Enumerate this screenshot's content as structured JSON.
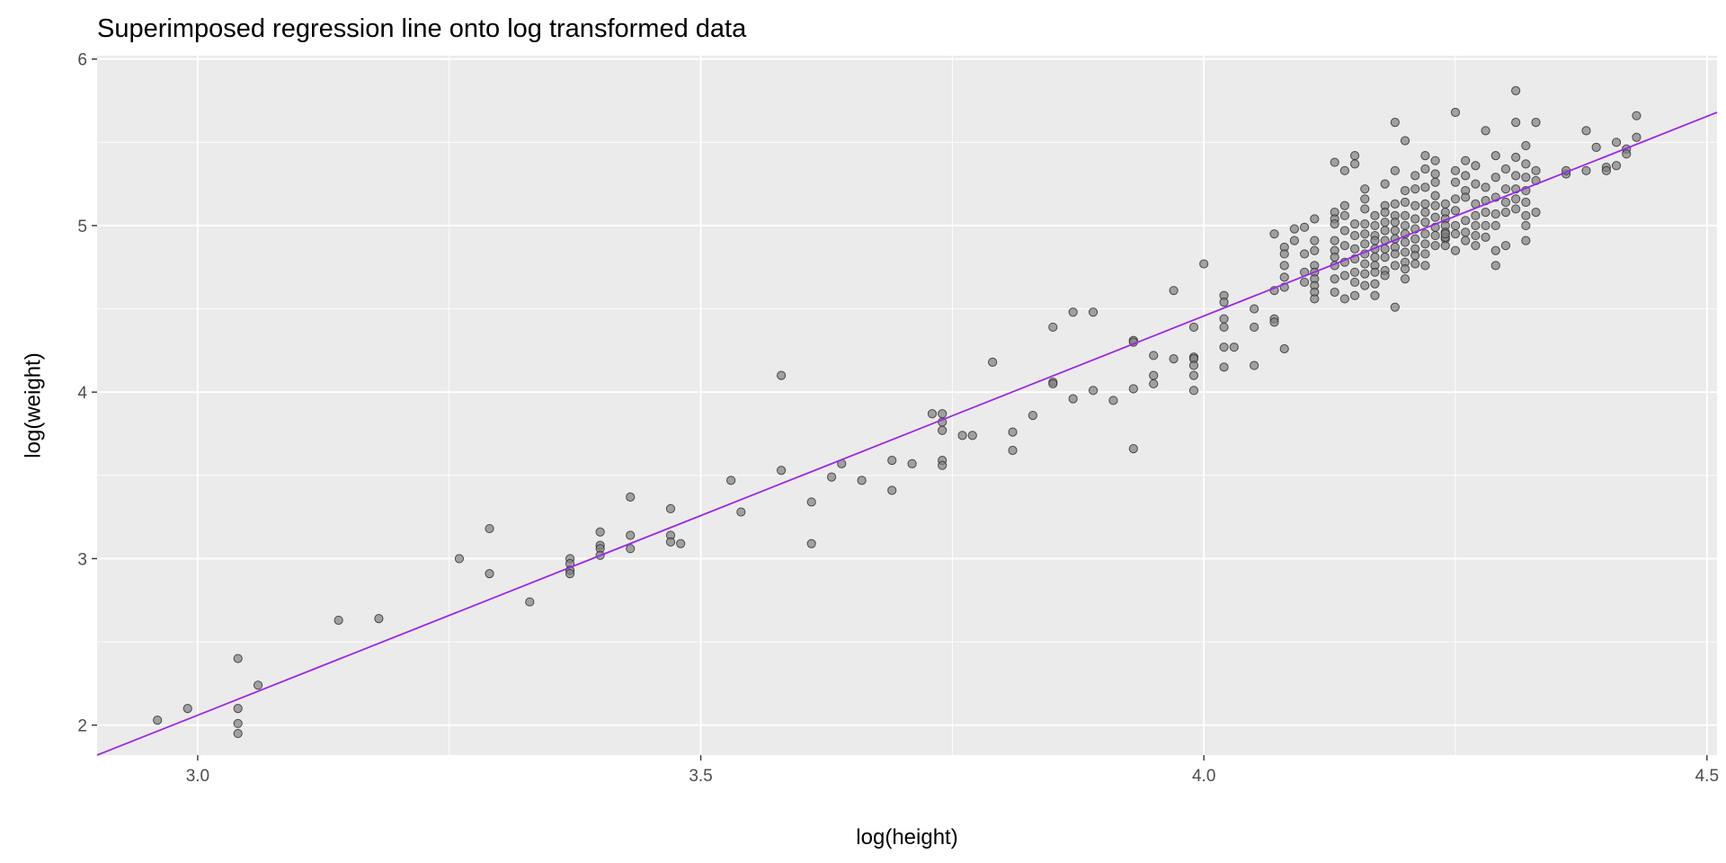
{
  "chart_data": {
    "type": "scatter",
    "title": "Superimposed regression line onto log transformed data",
    "xlabel": "log(height)",
    "ylabel": "log(weight)",
    "xlim": [
      2.9,
      4.51
    ],
    "ylim": [
      1.82,
      6.02
    ],
    "x_ticks": [
      3.0,
      3.5,
      4.0,
      4.5
    ],
    "x_tick_labels": [
      "3.0",
      "3.5",
      "4.0",
      "4.5"
    ],
    "y_ticks": [
      2,
      3,
      4,
      5,
      6
    ],
    "y_tick_labels": [
      "2",
      "3",
      "4",
      "5",
      "6"
    ],
    "grid": true,
    "legend": "none",
    "colors": {
      "panel_background": "#EBEBEB",
      "grid": "#FFFFFF",
      "point_fill": "#808080",
      "point_stroke": "#2B2B2B",
      "regression_line": "#9B27E8"
    },
    "series": [
      {
        "kind": "points",
        "x": [
          2.96,
          2.99,
          3.04,
          3.04,
          3.04,
          3.04,
          3.06,
          3.14,
          3.18,
          3.26,
          3.29,
          3.29,
          3.33,
          3.37,
          3.37,
          3.37,
          3.37,
          3.4,
          3.4,
          3.4,
          3.4,
          3.43,
          3.43,
          3.43,
          3.47,
          3.47,
          3.47,
          3.48,
          3.53,
          3.54,
          3.58,
          3.58,
          3.61,
          3.61,
          3.63,
          3.64,
          3.66,
          3.69,
          3.69,
          3.71,
          3.73,
          3.74,
          3.74,
          3.74,
          3.74,
          3.74,
          3.76,
          3.77,
          3.79,
          3.81,
          3.81,
          3.83,
          3.85,
          3.85,
          3.85,
          3.87,
          3.87,
          3.89,
          3.89,
          3.91,
          3.93,
          3.93,
          3.93,
          3.93,
          3.95,
          3.95,
          3.95,
          3.97,
          3.97,
          3.99,
          3.99,
          3.99,
          3.99,
          3.99,
          3.99,
          4.0,
          4.02,
          4.02,
          4.02,
          4.02,
          4.02,
          4.02,
          4.03,
          4.05,
          4.05,
          4.05,
          4.07,
          4.07,
          4.07,
          4.07,
          4.08,
          4.08,
          4.08,
          4.08,
          4.08,
          4.08,
          4.09,
          4.09,
          4.1,
          4.1,
          4.1,
          4.1,
          4.11,
          4.11,
          4.11,
          4.11,
          4.11,
          4.11,
          4.11,
          4.11,
          4.11,
          4.13,
          4.13,
          4.13,
          4.13,
          4.13,
          4.13,
          4.13,
          4.13,
          4.13,
          4.13,
          4.14,
          4.14,
          4.14,
          4.14,
          4.14,
          4.14,
          4.14,
          4.14,
          4.15,
          4.15,
          4.15,
          4.15,
          4.15,
          4.15,
          4.15,
          4.15,
          4.15,
          4.16,
          4.16,
          4.16,
          4.16,
          4.16,
          4.16,
          4.16,
          4.16,
          4.16,
          4.16,
          4.17,
          4.17,
          4.17,
          4.17,
          4.17,
          4.17,
          4.17,
          4.17,
          4.17,
          4.17,
          4.18,
          4.18,
          4.18,
          4.18,
          4.18,
          4.18,
          4.18,
          4.18,
          4.18,
          4.18,
          4.19,
          4.19,
          4.19,
          4.19,
          4.19,
          4.19,
          4.19,
          4.19,
          4.19,
          4.19,
          4.19,
          4.2,
          4.2,
          4.2,
          4.2,
          4.2,
          4.2,
          4.2,
          4.2,
          4.2,
          4.2,
          4.2,
          4.21,
          4.21,
          4.21,
          4.21,
          4.21,
          4.21,
          4.21,
          4.21,
          4.21,
          4.22,
          4.22,
          4.22,
          4.22,
          4.22,
          4.22,
          4.22,
          4.22,
          4.22,
          4.22,
          4.23,
          4.23,
          4.23,
          4.23,
          4.23,
          4.23,
          4.23,
          4.23,
          4.23,
          4.24,
          4.24,
          4.24,
          4.24,
          4.24,
          4.24,
          4.24,
          4.24,
          4.24,
          4.25,
          4.25,
          4.25,
          4.25,
          4.25,
          4.25,
          4.25,
          4.25,
          4.26,
          4.26,
          4.26,
          4.26,
          4.26,
          4.26,
          4.26,
          4.27,
          4.27,
          4.27,
          4.27,
          4.27,
          4.27,
          4.27,
          4.28,
          4.28,
          4.28,
          4.28,
          4.28,
          4.28,
          4.29,
          4.29,
          4.29,
          4.29,
          4.29,
          4.29,
          4.29,
          4.3,
          4.3,
          4.3,
          4.3,
          4.3,
          4.31,
          4.31,
          4.31,
          4.31,
          4.31,
          4.31,
          4.31,
          4.32,
          4.32,
          4.32,
          4.32,
          4.32,
          4.32,
          4.32,
          4.32,
          4.33,
          4.33,
          4.33,
          4.33,
          4.36,
          4.36,
          4.38,
          4.38,
          4.39,
          4.4,
          4.4,
          4.41,
          4.41,
          4.42,
          4.42,
          4.43,
          4.43
        ],
        "y": [
          2.03,
          2.1,
          2.4,
          2.1,
          2.01,
          1.95,
          2.24,
          2.63,
          2.64,
          3.0,
          3.18,
          2.91,
          2.74,
          3.0,
          2.97,
          2.93,
          2.91,
          3.16,
          3.08,
          3.06,
          3.02,
          3.37,
          3.14,
          3.06,
          3.3,
          3.14,
          3.1,
          3.09,
          3.47,
          3.28,
          4.1,
          3.53,
          3.34,
          3.09,
          3.49,
          3.57,
          3.47,
          3.59,
          3.41,
          3.57,
          3.87,
          3.87,
          3.82,
          3.77,
          3.59,
          3.56,
          3.74,
          3.74,
          4.18,
          3.76,
          3.65,
          3.86,
          4.39,
          4.06,
          4.05,
          4.48,
          3.96,
          4.48,
          4.01,
          3.95,
          4.31,
          4.3,
          4.02,
          3.66,
          4.22,
          4.1,
          4.05,
          4.61,
          4.2,
          4.39,
          4.21,
          4.2,
          4.16,
          4.1,
          4.01,
          4.77,
          4.58,
          4.54,
          4.44,
          4.39,
          4.27,
          4.15,
          4.27,
          4.5,
          4.39,
          4.16,
          4.95,
          4.61,
          4.44,
          4.42,
          4.26,
          4.87,
          4.83,
          4.76,
          4.69,
          4.63,
          4.98,
          4.91,
          4.99,
          4.83,
          4.72,
          4.66,
          5.04,
          4.91,
          4.85,
          4.76,
          4.72,
          4.68,
          4.64,
          4.6,
          4.56,
          5.38,
          5.08,
          5.04,
          5.01,
          4.91,
          4.85,
          4.81,
          4.76,
          4.68,
          4.6,
          5.33,
          5.12,
          5.06,
          4.97,
          4.88,
          4.78,
          4.7,
          4.56,
          5.42,
          5.37,
          5.01,
          4.94,
          4.86,
          4.8,
          4.72,
          4.66,
          4.58,
          5.22,
          5.16,
          5.1,
          5.01,
          4.95,
          4.89,
          4.83,
          4.77,
          4.71,
          4.64,
          5.06,
          5.0,
          4.94,
          4.91,
          4.86,
          4.81,
          4.76,
          4.72,
          4.65,
          4.58,
          5.25,
          5.12,
          5.08,
          5.02,
          4.97,
          4.91,
          4.86,
          4.81,
          4.73,
          4.7,
          5.62,
          5.33,
          5.13,
          5.06,
          5.02,
          4.97,
          4.92,
          4.87,
          4.83,
          4.76,
          4.51,
          5.51,
          5.21,
          5.14,
          5.06,
          5.0,
          4.95,
          4.9,
          4.84,
          4.78,
          4.74,
          4.68,
          5.3,
          5.22,
          5.12,
          5.04,
          4.98,
          4.92,
          4.86,
          4.82,
          4.77,
          5.42,
          5.34,
          5.23,
          5.13,
          5.08,
          5.02,
          4.95,
          4.89,
          4.83,
          4.76,
          5.39,
          5.31,
          5.26,
          5.18,
          5.12,
          5.05,
          4.99,
          4.94,
          4.88,
          5.13,
          5.08,
          5.04,
          5.0,
          4.96,
          4.92,
          4.88,
          4.93,
          4.95,
          5.68,
          5.33,
          5.26,
          5.16,
          5.09,
          5.0,
          4.95,
          4.85,
          5.39,
          5.3,
          5.21,
          5.17,
          5.03,
          4.96,
          4.91,
          5.36,
          5.25,
          5.13,
          5.06,
          5.0,
          4.94,
          4.88,
          5.57,
          5.23,
          5.15,
          5.08,
          5.0,
          4.93,
          5.42,
          5.29,
          5.17,
          5.07,
          5.0,
          4.85,
          4.76,
          5.34,
          5.22,
          5.14,
          5.08,
          4.88,
          5.81,
          5.62,
          5.41,
          5.3,
          5.22,
          5.16,
          5.1,
          5.48,
          5.37,
          5.29,
          5.21,
          5.14,
          5.06,
          5.0,
          4.91,
          5.62,
          5.33,
          5.27,
          5.08,
          5.31,
          5.33,
          5.57,
          5.33,
          5.47,
          5.35,
          5.33,
          5.5,
          5.36,
          5.46,
          5.43,
          5.66,
          5.53
        ]
      },
      {
        "kind": "regression-line",
        "x": [
          2.9,
          4.51
        ],
        "y": [
          1.82,
          5.68
        ]
      }
    ]
  }
}
